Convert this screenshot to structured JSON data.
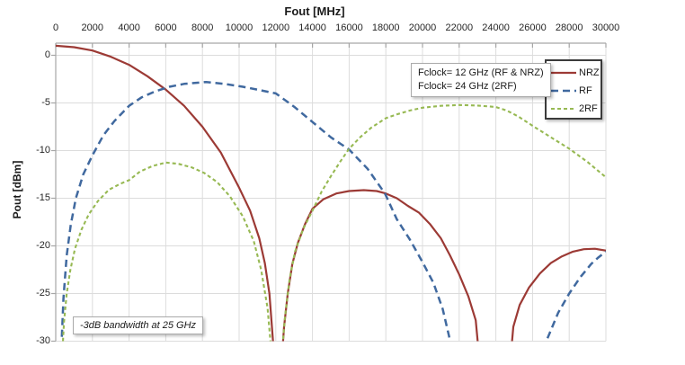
{
  "chart_data": {
    "type": "line",
    "xlabel": "Fout [MHz]",
    "ylabel": "Pout [dBm]",
    "xlim": [
      0,
      30000
    ],
    "ylim": [
      -30,
      1.27
    ],
    "x_ticks": [
      0,
      2000,
      4000,
      6000,
      8000,
      10000,
      12000,
      14000,
      16000,
      18000,
      20000,
      22000,
      24000,
      26000,
      28000,
      30000
    ],
    "y_ticks": [
      0,
      -5,
      -10,
      -15,
      -20,
      -25,
      -30
    ],
    "grid": true,
    "grid_color": "#dcdcdc",
    "axis_color": "#a6a6a6",
    "legend_position": "top-right-inside",
    "series": [
      {
        "name": "NRZ",
        "color": "#9c3a35",
        "dash": "solid",
        "width": 2.2,
        "points": [
          [
            0,
            1.0
          ],
          [
            1000,
            0.85
          ],
          [
            2000,
            0.5
          ],
          [
            3000,
            -0.15
          ],
          [
            4000,
            -1.0
          ],
          [
            5000,
            -2.2
          ],
          [
            6000,
            -3.6
          ],
          [
            7000,
            -5.3
          ],
          [
            8000,
            -7.5
          ],
          [
            9000,
            -10.2
          ],
          [
            10000,
            -13.9
          ],
          [
            10600,
            -16.3
          ],
          [
            11100,
            -19.2
          ],
          [
            11400,
            -21.8
          ],
          [
            11650,
            -25.0
          ],
          [
            11850,
            -30.0
          ],
          [
            11950,
            -34
          ],
          [
            12250,
            -34
          ],
          [
            12450,
            -28.5
          ],
          [
            12650,
            -25.0
          ],
          [
            12900,
            -21.9
          ],
          [
            13200,
            -19.7
          ],
          [
            13600,
            -17.7
          ],
          [
            14000,
            -16.1
          ],
          [
            14600,
            -15.1
          ],
          [
            15300,
            -14.5
          ],
          [
            16000,
            -14.25
          ],
          [
            16800,
            -14.15
          ],
          [
            17500,
            -14.25
          ],
          [
            18000,
            -14.5
          ],
          [
            18600,
            -15.0
          ],
          [
            19200,
            -15.8
          ],
          [
            19800,
            -16.5
          ],
          [
            20400,
            -17.7
          ],
          [
            21000,
            -19.2
          ],
          [
            21500,
            -21.0
          ],
          [
            22000,
            -23.0
          ],
          [
            22500,
            -25.3
          ],
          [
            22900,
            -27.8
          ],
          [
            23200,
            -34
          ],
          [
            24700,
            -34
          ],
          [
            24950,
            -28.5
          ],
          [
            25300,
            -26.2
          ],
          [
            25800,
            -24.4
          ],
          [
            26400,
            -22.9
          ],
          [
            27000,
            -21.8
          ],
          [
            27600,
            -21.1
          ],
          [
            28200,
            -20.6
          ],
          [
            28800,
            -20.35
          ],
          [
            29400,
            -20.3
          ],
          [
            30000,
            -20.5
          ]
        ]
      },
      {
        "name": "RF",
        "color": "#40699f",
        "dash": "long",
        "width": 2.5,
        "points": [
          [
            280,
            -32
          ],
          [
            420,
            -25.5
          ],
          [
            600,
            -21.0
          ],
          [
            820,
            -17.8
          ],
          [
            1100,
            -15.0
          ],
          [
            1500,
            -12.5
          ],
          [
            2000,
            -10.5
          ],
          [
            2600,
            -8.4
          ],
          [
            3200,
            -6.9
          ],
          [
            4000,
            -5.3
          ],
          [
            4700,
            -4.4
          ],
          [
            5400,
            -3.8
          ],
          [
            6200,
            -3.3
          ],
          [
            7000,
            -3.0
          ],
          [
            8200,
            -2.8
          ],
          [
            9200,
            -3.0
          ],
          [
            10200,
            -3.3
          ],
          [
            11000,
            -3.6
          ],
          [
            12000,
            -4.0
          ],
          [
            13000,
            -5.4
          ],
          [
            14000,
            -7.0
          ],
          [
            15000,
            -8.6
          ],
          [
            16000,
            -9.9
          ],
          [
            17000,
            -11.9
          ],
          [
            17950,
            -14.5
          ],
          [
            18600,
            -17.2
          ],
          [
            19300,
            -19.3
          ],
          [
            20000,
            -21.7
          ],
          [
            20600,
            -23.9
          ],
          [
            21100,
            -26.6
          ],
          [
            21450,
            -29.5
          ],
          [
            21600,
            -32
          ],
          [
            26300,
            -32
          ],
          [
            26900,
            -29.3
          ],
          [
            27400,
            -27.0
          ],
          [
            28000,
            -25.0
          ],
          [
            28600,
            -23.3
          ],
          [
            29200,
            -21.9
          ],
          [
            29600,
            -21.2
          ],
          [
            30000,
            -20.6
          ]
        ]
      },
      {
        "name": "2RF",
        "color": "#97b953",
        "dash": "short",
        "width": 2.1,
        "points": [
          [
            340,
            -32
          ],
          [
            450,
            -28.0
          ],
          [
            600,
            -25.0
          ],
          [
            800,
            -22.5
          ],
          [
            1050,
            -20.3
          ],
          [
            1400,
            -18.3
          ],
          [
            1800,
            -16.7
          ],
          [
            2300,
            -15.3
          ],
          [
            2900,
            -14.1
          ],
          [
            3500,
            -13.5
          ],
          [
            4000,
            -13.1
          ],
          [
            4600,
            -12.2
          ],
          [
            5300,
            -11.6
          ],
          [
            6000,
            -11.25
          ],
          [
            6700,
            -11.4
          ],
          [
            7400,
            -11.75
          ],
          [
            8100,
            -12.35
          ],
          [
            8800,
            -13.3
          ],
          [
            9500,
            -14.8
          ],
          [
            10200,
            -16.9
          ],
          [
            10800,
            -19.5
          ],
          [
            11200,
            -22.5
          ],
          [
            11550,
            -26.5
          ],
          [
            11800,
            -32
          ],
          [
            12300,
            -32
          ],
          [
            12500,
            -27.5
          ],
          [
            12750,
            -23.5
          ],
          [
            13050,
            -20.6
          ],
          [
            13500,
            -18.2
          ],
          [
            14000,
            -16.3
          ],
          [
            14500,
            -14.3
          ],
          [
            15000,
            -12.7
          ],
          [
            15500,
            -11.2
          ],
          [
            16000,
            -9.8
          ],
          [
            16600,
            -8.6
          ],
          [
            17200,
            -7.6
          ],
          [
            18000,
            -6.6
          ],
          [
            18600,
            -6.2
          ],
          [
            19300,
            -5.8
          ],
          [
            20000,
            -5.5
          ],
          [
            21000,
            -5.3
          ],
          [
            22000,
            -5.22
          ],
          [
            23000,
            -5.27
          ],
          [
            24000,
            -5.42
          ],
          [
            24600,
            -5.8
          ],
          [
            25200,
            -6.4
          ],
          [
            26000,
            -7.4
          ],
          [
            27000,
            -8.6
          ],
          [
            28000,
            -9.8
          ],
          [
            29000,
            -11.2
          ],
          [
            30000,
            -12.8
          ]
        ]
      }
    ],
    "annotations": {
      "fclock_line1": "Fclock= 12 GHz (RF & NRZ)",
      "fclock_line2": "Fclock= 24 GHz (2RF)",
      "bandwidth_note": "-3dB bandwidth at 25 GHz"
    }
  }
}
